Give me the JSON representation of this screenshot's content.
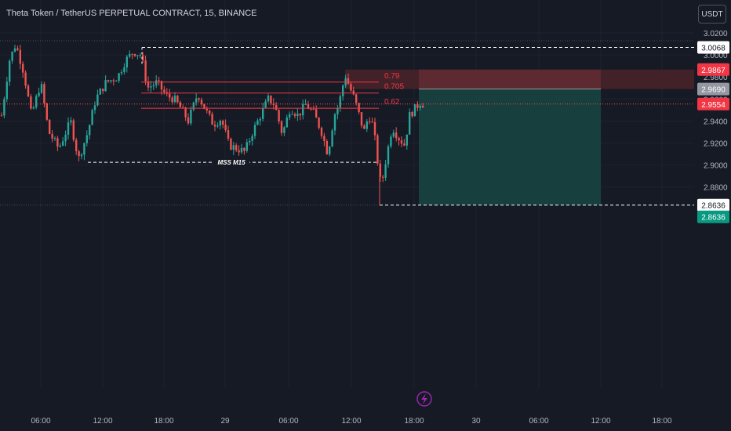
{
  "header": {
    "title": "Theta Token / TetherUS PERPETUAL CONTRACT, 15, BINANCE",
    "currency_label": "USDT"
  },
  "colors": {
    "background": "#161a25",
    "grid": "#1f2330",
    "text": "#b2b5be",
    "up": "#26a69a",
    "down": "#ef5350",
    "stop_zone": "#5c2a30",
    "target_zone": "#163f3d",
    "fib_line": "#f23645"
  },
  "annotations": {
    "mss_label": "MSS M15",
    "live_icon": "lightning-icon"
  },
  "chart_data": {
    "type": "candlestick",
    "symbol": "THETAUSDT",
    "interval": "15",
    "y_axis": {
      "ticks": [
        "3.0200",
        "3.0000",
        "2.9800",
        "2.9600",
        "2.9400",
        "2.9200",
        "2.9000",
        "2.8800"
      ],
      "ylim": [
        2.858,
        3.024
      ]
    },
    "x_axis": {
      "ticks": [
        "06:00",
        "12:00",
        "18:00",
        "29",
        "06:00",
        "12:00",
        "18:00",
        "30",
        "06:00",
        "12:00",
        "18:00"
      ]
    },
    "price_labels": [
      {
        "text": "3.0068",
        "value": 3.0068,
        "style": "white"
      },
      {
        "text": "2.9867",
        "value": 2.9867,
        "style": "red"
      },
      {
        "text": "2.9690",
        "value": 2.969,
        "style": "grey"
      },
      {
        "text": "2.9554",
        "value": 2.9554,
        "style": "red"
      },
      {
        "text": "2.8636",
        "value": 2.8636,
        "style": "white"
      },
      {
        "text": "2.8636",
        "value": 2.8636,
        "style": "green"
      }
    ],
    "fib_levels": [
      {
        "label": "0.79",
        "value": 2.9753
      },
      {
        "label": "0.705",
        "value": 2.9654
      },
      {
        "label": "0.62",
        "value": 2.9516
      }
    ],
    "levels": {
      "high": 3.0068,
      "mss": 2.9025,
      "low": 2.8636,
      "last_price": 2.9554
    },
    "position": {
      "type": "short",
      "entry": 2.969,
      "stop": 2.9867,
      "target": 2.8636
    },
    "grid": true
  }
}
